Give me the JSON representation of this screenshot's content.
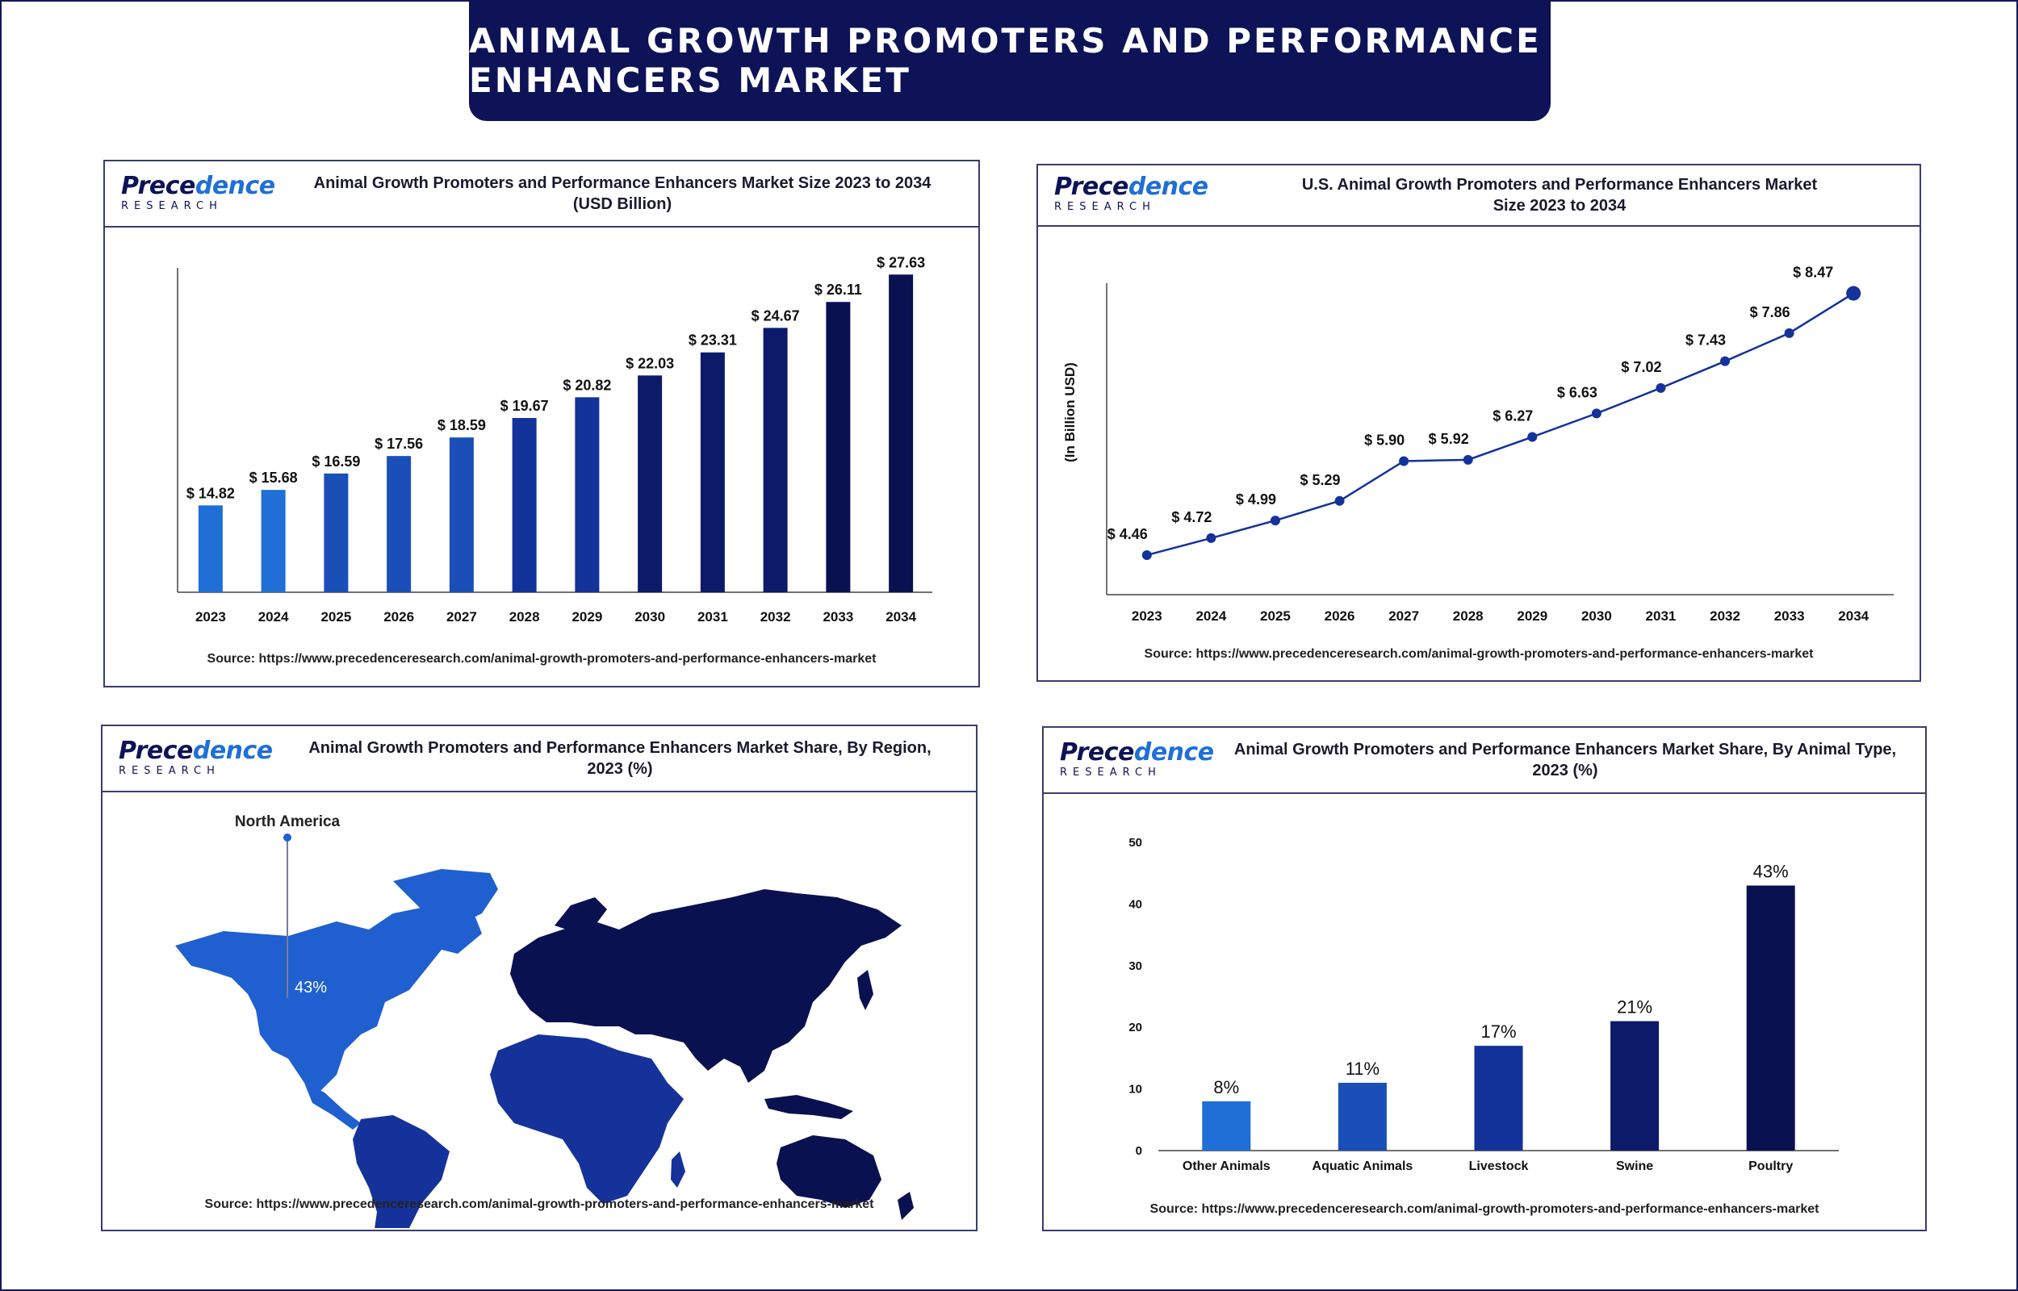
{
  "banner_title": "ANIMAL GROWTH PROMOTERS AND PERFORMANCE ENHANCERS MARKET",
  "logo": {
    "word_a": "Prece",
    "word_b": "dence",
    "sub": "RESEARCH"
  },
  "source_text": "Source: https://www.precedenceresearch.com/animal-growth-promoters-and-performance-enhancers-market",
  "panels": {
    "market_size": {
      "title_line1": "Animal Growth Promoters and Performance Enhancers Market Size 2023 to 2034",
      "title_line2": "(USD Billion)"
    },
    "us_market": {
      "title_line1": "U.S. Animal Growth Promoters and Performance Enhancers Market",
      "title_line2": "Size 2023 to 2034",
      "ylabel": "(In Billion USD)"
    },
    "region": {
      "title_line1": "Animal Growth Promoters and Performance Enhancers Market Share, By Region,",
      "title_line2": "2023 (%)",
      "callout_label": "North America",
      "callout_value": "43%"
    },
    "animal_type": {
      "title_line1": "Animal Growth Promoters and Performance Enhancers Market Share, By Animal Type,",
      "title_line2": "2023 (%)"
    }
  },
  "colors": {
    "navy": "#0d1356",
    "bar_gradient": [
      "#1f6fd6",
      "#1a4fb8",
      "#13329a",
      "#0d1a6a",
      "#0a1150"
    ],
    "line": "#13329a",
    "map_na": "#1f5fd0",
    "map_sa_af": "#15329a",
    "map_eurasia": "#0a1150"
  },
  "chart_data": [
    {
      "type": "bar",
      "categories": [
        "2023",
        "2024",
        "2025",
        "2026",
        "2027",
        "2028",
        "2029",
        "2030",
        "2031",
        "2032",
        "2033",
        "2034"
      ],
      "values": [
        14.82,
        15.68,
        16.59,
        17.56,
        18.59,
        19.67,
        20.82,
        22.03,
        23.31,
        24.67,
        26.11,
        27.63
      ],
      "labels": [
        "$ 14.82",
        "$ 15.68",
        "$ 16.59",
        "$ 17.56",
        "$ 18.59",
        "$ 19.67",
        "$ 20.82",
        "$ 22.03",
        "$ 23.31",
        "$ 24.67",
        "$ 26.11",
        "$ 27.63"
      ],
      "title": "Animal Growth Promoters and Performance Enhancers Market Size 2023 to 2034 (USD Billion)",
      "ylim": [
        10,
        28
      ]
    },
    {
      "type": "line",
      "x": [
        "2023",
        "2024",
        "2025",
        "2026",
        "2027",
        "2028",
        "2029",
        "2030",
        "2031",
        "2032",
        "2033",
        "2034"
      ],
      "values": [
        4.46,
        4.72,
        4.99,
        5.29,
        5.9,
        5.92,
        6.27,
        6.63,
        7.02,
        7.43,
        7.86,
        8.47
      ],
      "labels": [
        "$ 4.46",
        "$ 4.72",
        "$ 4.99",
        "$ 5.29",
        "$ 5.90",
        "$ 5.92",
        "$ 6.27",
        "$ 6.63",
        "$ 7.02",
        "$ 7.43",
        "$ 7.86",
        "$ 8.47"
      ],
      "title": "U.S. Animal Growth Promoters and Performance Enhancers Market Size 2023 to 2034",
      "ylabel": "(In Billion USD)",
      "ylim": [
        4.2,
        8.6
      ]
    },
    {
      "type": "bar",
      "categories": [
        "Other Animals",
        "Aquatic Animals",
        "Livestock",
        "Swine",
        "Poultry"
      ],
      "values": [
        8,
        11,
        17,
        21,
        43
      ],
      "labels": [
        "8%",
        "11%",
        "17%",
        "21%",
        "43%"
      ],
      "yticks": [
        "0",
        "10",
        "20",
        "30",
        "40",
        "50"
      ],
      "title": "Animal Growth Promoters and Performance Enhancers Market Share, By Animal Type, 2023 (%)",
      "ylim": [
        0,
        50
      ]
    }
  ]
}
